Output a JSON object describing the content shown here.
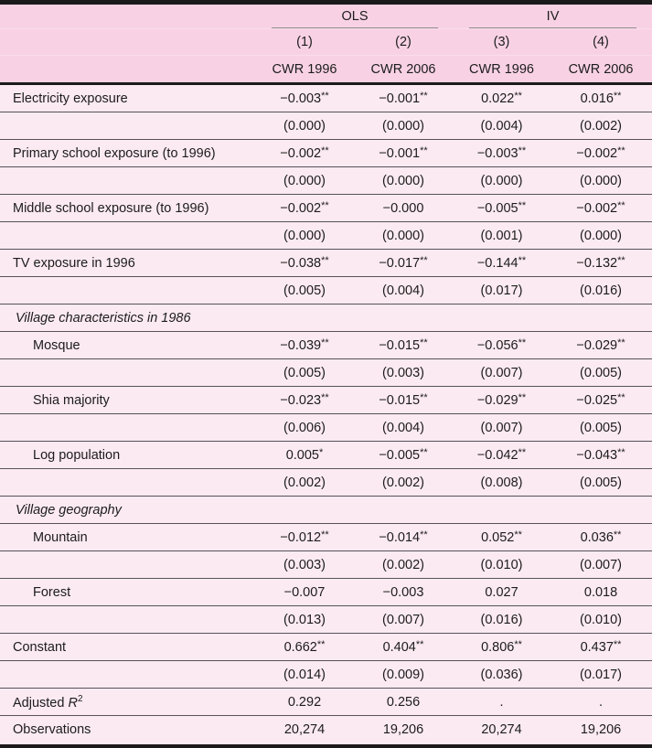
{
  "colors": {
    "header_bg": "#f8d2e4",
    "body_bg": "#fbeaf1",
    "rule_heavy": "#1b1b1b",
    "rule_row": "#57525a"
  },
  "table": {
    "col_groups": [
      {
        "label": "OLS",
        "span": 2
      },
      {
        "label": "IV",
        "span": 2
      }
    ],
    "col_numbers": [
      "(1)",
      "(2)",
      "(3)",
      "(4)"
    ],
    "col_headers": [
      "CWR 1996",
      "CWR 2006",
      "CWR 1996",
      "CWR 2006"
    ],
    "rows": [
      {
        "kind": "coef",
        "indent": 0,
        "label": "Electricity exposure",
        "values": [
          "−0.003**",
          "−0.001**",
          "0.022**",
          "0.016**"
        ]
      },
      {
        "kind": "se",
        "values": [
          "(0.000)",
          "(0.000)",
          "(0.004)",
          "(0.002)"
        ]
      },
      {
        "kind": "coef",
        "indent": 0,
        "label": "Primary school exposure (to 1996)",
        "values": [
          "−0.002**",
          "−0.001**",
          "−0.003**",
          "−0.002**"
        ]
      },
      {
        "kind": "se",
        "values": [
          "(0.000)",
          "(0.000)",
          "(0.000)",
          "(0.000)"
        ]
      },
      {
        "kind": "coef",
        "indent": 0,
        "label": "Middle school exposure (to 1996)",
        "values": [
          "−0.002**",
          "−0.000",
          "−0.005**",
          "−0.002**"
        ]
      },
      {
        "kind": "se",
        "values": [
          "(0.000)",
          "(0.000)",
          "(0.001)",
          "(0.000)"
        ]
      },
      {
        "kind": "coef",
        "indent": 0,
        "label": "TV exposure in 1996",
        "values": [
          "−0.038**",
          "−0.017**",
          "−0.144**",
          "−0.132**"
        ]
      },
      {
        "kind": "se",
        "values": [
          "(0.005)",
          "(0.004)",
          "(0.017)",
          "(0.016)"
        ]
      },
      {
        "kind": "section",
        "label": "Village characteristics in 1986"
      },
      {
        "kind": "coef",
        "indent": 1,
        "label": "Mosque",
        "values": [
          "−0.039**",
          "−0.015**",
          "−0.056**",
          "−0.029**"
        ]
      },
      {
        "kind": "se",
        "values": [
          "(0.005)",
          "(0.003)",
          "(0.007)",
          "(0.005)"
        ]
      },
      {
        "kind": "coef",
        "indent": 1,
        "label": "Shia majority",
        "values": [
          "−0.023**",
          "−0.015**",
          "−0.029**",
          "−0.025**"
        ]
      },
      {
        "kind": "se",
        "values": [
          "(0.006)",
          "(0.004)",
          "(0.007)",
          "(0.005)"
        ]
      },
      {
        "kind": "coef",
        "indent": 1,
        "label": "Log population",
        "values": [
          "0.005*",
          "−0.005**",
          "−0.042**",
          "−0.043**"
        ]
      },
      {
        "kind": "se",
        "values": [
          "(0.002)",
          "(0.002)",
          "(0.008)",
          "(0.005)"
        ]
      },
      {
        "kind": "section",
        "label": "Village geography"
      },
      {
        "kind": "coef",
        "indent": 1,
        "label": "Mountain",
        "values": [
          "−0.012**",
          "−0.014**",
          "0.052**",
          "0.036**"
        ]
      },
      {
        "kind": "se",
        "values": [
          "(0.003)",
          "(0.002)",
          "(0.010)",
          "(0.007)"
        ]
      },
      {
        "kind": "coef",
        "indent": 1,
        "label": "Forest",
        "values": [
          "−0.007",
          "−0.003",
          "0.027",
          "0.018"
        ]
      },
      {
        "kind": "se",
        "values": [
          "(0.013)",
          "(0.007)",
          "(0.016)",
          "(0.010)"
        ]
      },
      {
        "kind": "coef",
        "indent": 0,
        "label": "Constant",
        "values": [
          "0.662**",
          "0.404**",
          "0.806**",
          "0.437**"
        ]
      },
      {
        "kind": "se",
        "values": [
          "(0.014)",
          "(0.009)",
          "(0.036)",
          "(0.017)"
        ]
      },
      {
        "kind": "stat",
        "indent": 0,
        "label_parts": [
          {
            "t": "Adjusted "
          },
          {
            "t": "R",
            "i": true,
            "sup": "2"
          }
        ],
        "values": [
          "0.292",
          "0.256",
          ".",
          "."
        ]
      },
      {
        "kind": "stat",
        "indent": 0,
        "label": "Observations",
        "values": [
          "20,274",
          "19,206",
          "20,274",
          "19,206"
        ]
      }
    ]
  }
}
